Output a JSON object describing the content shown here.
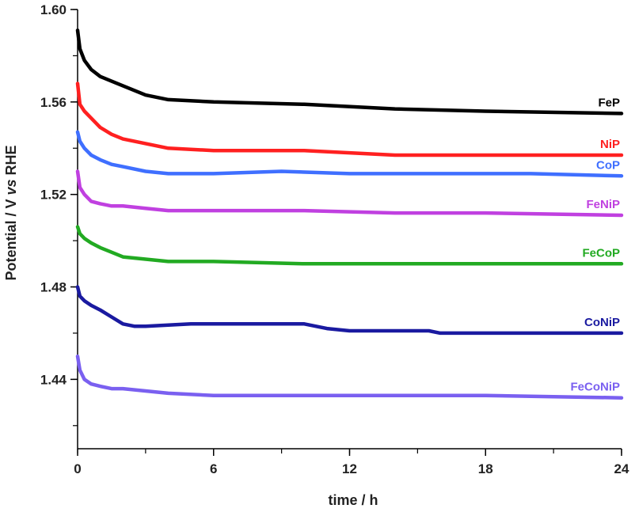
{
  "chart_data": {
    "type": "line",
    "xlabel": "time / h",
    "ylabel_parts": [
      "Potential / V ",
      "vs",
      " RHE"
    ],
    "xlim": [
      0,
      24
    ],
    "ylim": [
      1.41,
      1.6
    ],
    "xticks": [
      "0",
      "6",
      "12",
      "18",
      "24"
    ],
    "yticks": [
      "1.44",
      "1.48",
      "1.52",
      "1.56",
      "1.60"
    ],
    "series": [
      {
        "name": "FeP",
        "color": "#000000",
        "x": [
          0,
          0.1,
          0.3,
          0.6,
          1,
          1.5,
          2,
          3,
          4,
          6,
          10,
          14,
          18,
          24
        ],
        "y": [
          1.591,
          1.583,
          1.578,
          1.574,
          1.571,
          1.569,
          1.567,
          1.563,
          1.561,
          1.56,
          1.559,
          1.557,
          1.556,
          1.555
        ]
      },
      {
        "name": "NiP",
        "color": "#ff2020",
        "x": [
          0,
          0.1,
          0.3,
          0.6,
          1,
          1.5,
          2,
          3,
          4,
          6,
          10,
          14,
          18,
          24
        ],
        "y": [
          1.568,
          1.559,
          1.556,
          1.553,
          1.549,
          1.546,
          1.544,
          1.542,
          1.54,
          1.539,
          1.539,
          1.537,
          1.537,
          1.537
        ]
      },
      {
        "name": "CoP",
        "color": "#3f6fff",
        "x": [
          0,
          0.1,
          0.3,
          0.6,
          1,
          1.5,
          2,
          3,
          4,
          6,
          9,
          12,
          16,
          20,
          24
        ],
        "y": [
          1.547,
          1.543,
          1.54,
          1.537,
          1.535,
          1.533,
          1.532,
          1.53,
          1.529,
          1.529,
          1.53,
          1.529,
          1.529,
          1.529,
          1.528
        ]
      },
      {
        "name": "FeNiP",
        "color": "#c040e0",
        "x": [
          0,
          0.1,
          0.3,
          0.6,
          1,
          1.5,
          2,
          3,
          4,
          6,
          10,
          14,
          18,
          24
        ],
        "y": [
          1.53,
          1.523,
          1.52,
          1.517,
          1.516,
          1.515,
          1.515,
          1.514,
          1.513,
          1.513,
          1.513,
          1.512,
          1.512,
          1.511
        ]
      },
      {
        "name": "FeCoP",
        "color": "#22aa22",
        "x": [
          0,
          0.1,
          0.3,
          0.6,
          1,
          1.5,
          2,
          3,
          4,
          6,
          10,
          14,
          18,
          24
        ],
        "y": [
          1.506,
          1.503,
          1.501,
          1.499,
          1.497,
          1.495,
          1.493,
          1.492,
          1.491,
          1.491,
          1.49,
          1.49,
          1.49,
          1.49
        ]
      },
      {
        "name": "CoNiP",
        "color": "#1a1aa0",
        "x": [
          0,
          0.1,
          0.3,
          0.6,
          1,
          1.5,
          2,
          2.5,
          3,
          5,
          7,
          9,
          10,
          11,
          12,
          14,
          15.5,
          16,
          17,
          20,
          24
        ],
        "y": [
          1.48,
          1.476,
          1.474,
          1.472,
          1.47,
          1.467,
          1.464,
          1.463,
          1.463,
          1.464,
          1.464,
          1.464,
          1.464,
          1.462,
          1.461,
          1.461,
          1.461,
          1.46,
          1.46,
          1.46,
          1.46
        ]
      },
      {
        "name": "FeCoNiP",
        "color": "#7a60f0",
        "x": [
          0,
          0.1,
          0.3,
          0.6,
          1,
          1.5,
          2,
          3,
          4,
          6,
          10,
          14,
          18,
          24
        ],
        "y": [
          1.45,
          1.444,
          1.44,
          1.438,
          1.437,
          1.436,
          1.436,
          1.435,
          1.434,
          1.433,
          1.433,
          1.433,
          1.433,
          1.432
        ]
      }
    ]
  }
}
